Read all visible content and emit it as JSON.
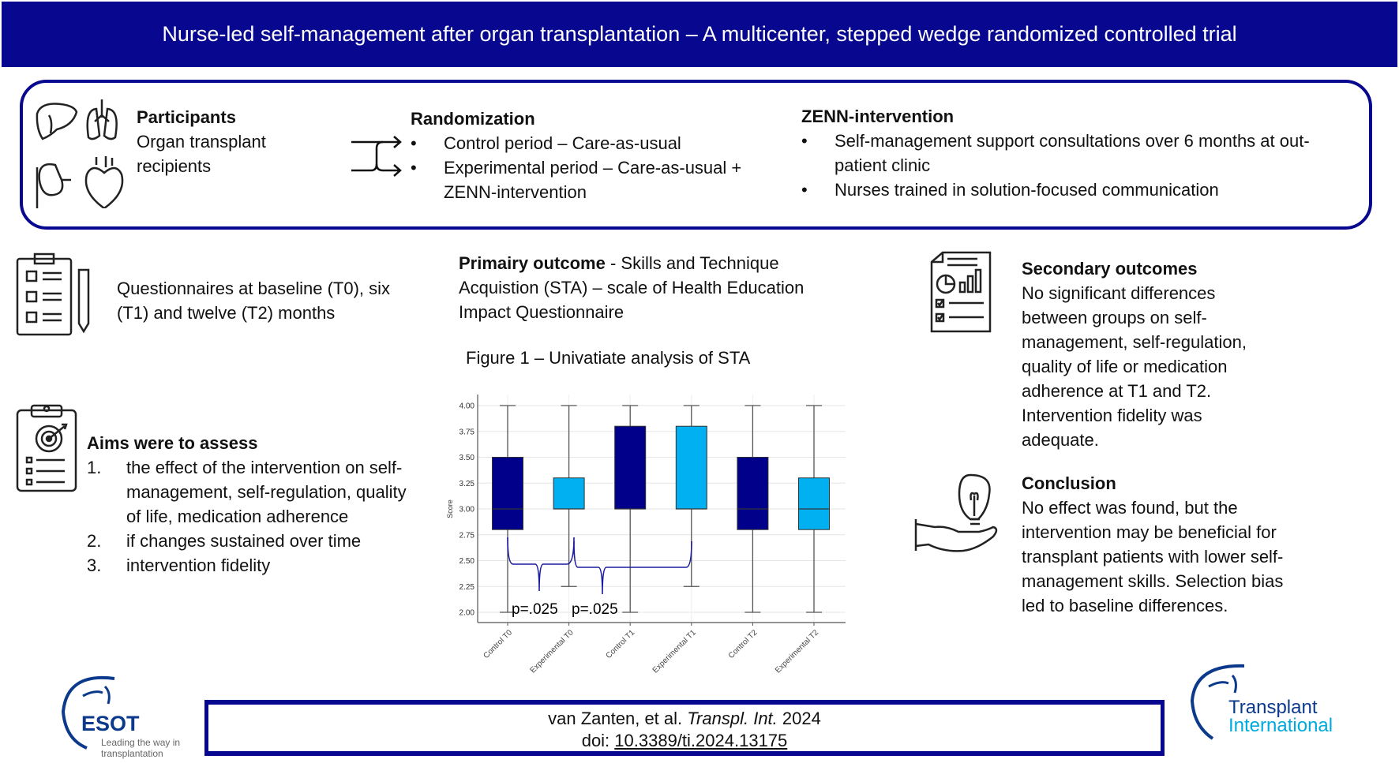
{
  "header": {
    "title": "Nurse-led self-management after organ transplantation – A multicenter, stepped wedge randomized controlled trial"
  },
  "participants": {
    "title": "Participants",
    "text": "Organ transplant recipients",
    "icons": [
      "liver-icon",
      "lungs-icon",
      "kidney-icon",
      "heart-icon"
    ]
  },
  "randomization": {
    "title": "Randomization",
    "items": [
      "Control period – Care-as-usual",
      "Experimental period – Care-as-usual + ZENN-intervention"
    ]
  },
  "intervention": {
    "title": "ZENN-intervention",
    "items": [
      "Self-management support consultations over 6 months at out-patient clinic",
      "Nurses trained in solution-focused communication"
    ]
  },
  "questionnaires": {
    "text": "Questionnaires at baseline (T0), six (T1) and twelve (T2) months"
  },
  "primary": {
    "title": "Primairy outcome",
    "text": " - Skills and Technique Acquistion (STA) – scale of Health Education Impact Questionnaire"
  },
  "figure": {
    "caption": "Figure 1 – Univatiate analysis of STA"
  },
  "aims": {
    "title": "Aims were to assess",
    "items": [
      {
        "n": "1.",
        "text": "the effect of the intervention on self-management, self-regulation, quality of life, medication adherence"
      },
      {
        "n": "2.",
        "text": "if changes sustained over time"
      },
      {
        "n": "3.",
        "text": "intervention fidelity"
      }
    ]
  },
  "secondary": {
    "title": "Secondary outcomes",
    "text": "No significant differences between groups on self-management, self-regulation, quality of life or medication adherence at T1 and T2. Intervention fidelity was adequate."
  },
  "conclusion": {
    "title": "Conclusion",
    "text": "No effect was found, but the intervention may be beneficial for transplant patients with lower self-management skills. Selection bias led to baseline differences."
  },
  "footer": {
    "authors": "van Zanten, et al. ",
    "journal": "Transpl. Int.",
    "year": " 2024",
    "doi_label": "doi: ",
    "doi": "10.3389/ti.2024.13175"
  },
  "logos": {
    "esot": "ESOT",
    "esot_tagline": "Leading the way in transplantation",
    "ti_line1": "Transplant",
    "ti_line2": "International"
  },
  "colors": {
    "brand": "#07078f",
    "control": "#00008b",
    "experimental": "#00b0f0",
    "annotation": "#1a1aa0"
  },
  "chart_data": {
    "type": "box",
    "ylabel": "Score",
    "ylim": [
      2.0,
      4.0
    ],
    "yticks": [
      "2.00",
      "2.25",
      "2.50",
      "2.75",
      "3.00",
      "3.25",
      "3.50",
      "3.75",
      "4.00"
    ],
    "grid": true,
    "categories": [
      "Control T0",
      "Experimental T0",
      "Control T1",
      "Experimental T1",
      "Control T2",
      "Experimental T2"
    ],
    "boxes": [
      {
        "min": 2.0,
        "q1": 2.8,
        "median": 3.0,
        "q3": 3.5,
        "max": 4.0,
        "group": "control"
      },
      {
        "min": 2.25,
        "q1": 3.0,
        "median": 3.0,
        "q3": 3.3,
        "max": 4.0,
        "group": "experimental"
      },
      {
        "min": 2.0,
        "q1": 3.0,
        "median": 3.0,
        "q3": 3.8,
        "max": 4.0,
        "group": "control"
      },
      {
        "min": 2.25,
        "q1": 3.0,
        "median": 3.0,
        "q3": 3.8,
        "max": 4.0,
        "group": "experimental"
      },
      {
        "min": 2.0,
        "q1": 2.8,
        "median": 3.0,
        "q3": 3.5,
        "max": 4.0,
        "group": "control"
      },
      {
        "min": 2.0,
        "q1": 2.8,
        "median": 3.0,
        "q3": 3.3,
        "max": 4.0,
        "group": "experimental"
      }
    ],
    "annotations": [
      {
        "between": [
          "Control T0",
          "Experimental T0"
        ],
        "label": "p=.025"
      },
      {
        "between": [
          "Experimental T0",
          "Experimental T1"
        ],
        "label": "p=.025"
      }
    ]
  }
}
